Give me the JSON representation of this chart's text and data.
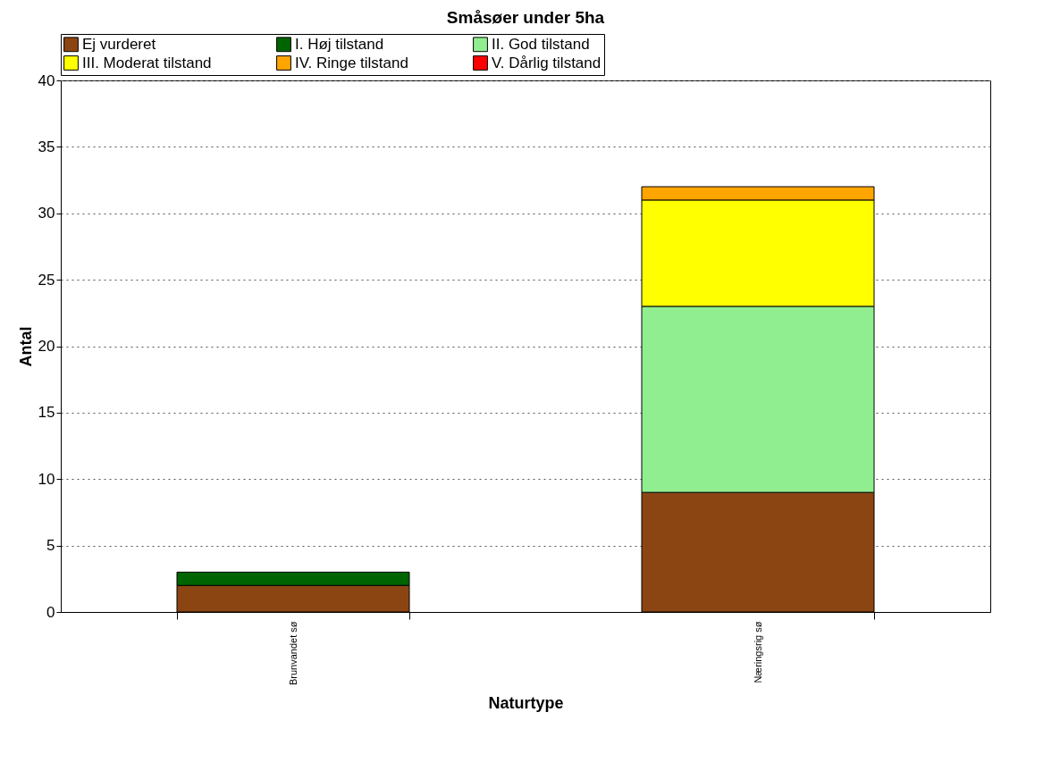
{
  "chart_data": {
    "type": "bar",
    "title": "Småsøer under 5ha",
    "xlabel": "Naturtype",
    "ylabel": "Antal",
    "categories": [
      "Brunvandet sø",
      "Næringsrig sø"
    ],
    "stacked": true,
    "series": [
      {
        "name": "Ej vurderet",
        "color": "#8b4513",
        "values": [
          2,
          9
        ]
      },
      {
        "name": "I. Høj tilstand",
        "color": "#006400",
        "values": [
          1,
          null
        ]
      },
      {
        "name": "II. God tilstand",
        "color": "#90ee90",
        "values": [
          null,
          14
        ]
      },
      {
        "name": "III. Moderat tilstand",
        "color": "#ffff00",
        "values": [
          null,
          8
        ]
      },
      {
        "name": "IV. Ringe tilstand",
        "color": "#ffa500",
        "values": [
          null,
          1
        ]
      },
      {
        "name": "V. Dårlig tilstand",
        "color": "#ff0000",
        "values": [
          null,
          null
        ]
      }
    ],
    "ylim": [
      0,
      40
    ],
    "yticks": [
      0,
      5,
      10,
      15,
      20,
      25,
      30,
      35,
      40
    ],
    "grid": "y",
    "legend": "top"
  }
}
